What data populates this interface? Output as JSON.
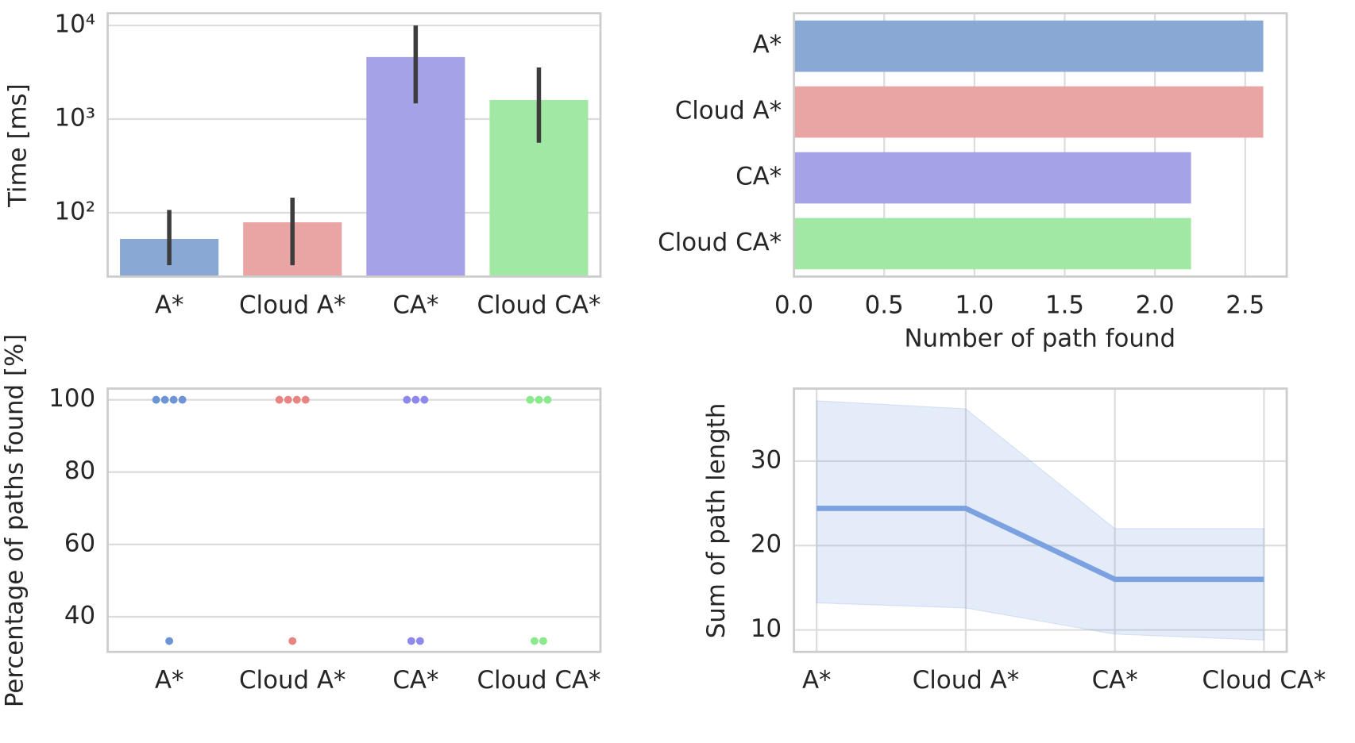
{
  "chart_data": [
    {
      "type": "bar",
      "ylabel": "Time [ms]",
      "categories": [
        "A*",
        "Cloud A*",
        "CA*",
        "Cloud CA*"
      ],
      "values": [
        52.5,
        79,
        4600,
        1600
      ],
      "err_low": [
        27.5,
        27.5,
        1470,
        560
      ],
      "err_high": [
        107,
        145,
        10000,
        3560
      ],
      "colors": [
        "#89a9d4",
        "#e8a5a3",
        "#a5a2e8",
        "#a2e8a5"
      ],
      "log_y": true,
      "ylim": [
        20.8,
        13500
      ],
      "yticks": [
        {
          "value": 100,
          "label": "10²"
        },
        {
          "value": 1000,
          "label": "10³"
        },
        {
          "value": 10000,
          "label": "10⁴"
        }
      ],
      "grid": true
    },
    {
      "type": "barh",
      "xlabel": "Number of path found",
      "categories": [
        "A*",
        "Cloud A*",
        "CA*",
        "Cloud CA*"
      ],
      "values": [
        2.6,
        2.6,
        2.2,
        2.2
      ],
      "colors": [
        "#89a9d4",
        "#e8a5a3",
        "#a5a2e8",
        "#a2e8a5"
      ],
      "xlim": [
        0,
        2.73
      ],
      "xticks": [
        {
          "value": 0,
          "label": "0.0"
        },
        0.5,
        {
          "value": 1,
          "label": "1.0"
        },
        1.5,
        {
          "value": 2,
          "label": "2.0"
        },
        2.5
      ],
      "grid": true
    },
    {
      "type": "strip",
      "ylabel": "Percentage of paths found [%]",
      "categories": [
        "A*",
        "Cloud A*",
        "CA*",
        "Cloud CA*"
      ],
      "values": [
        [
          100,
          100,
          100,
          100,
          33.3
        ],
        [
          100,
          100,
          100,
          100,
          33.3
        ],
        [
          100,
          100,
          100,
          33.3,
          33.3
        ],
        [
          100,
          100,
          100,
          33.3,
          33.3
        ]
      ],
      "colors": [
        "#6d95d6",
        "#e88583",
        "#8d89ec",
        "#8ae88d"
      ],
      "ylim": [
        30.3,
        103.1
      ],
      "yticks": [
        40,
        60,
        80,
        100
      ],
      "grid": true
    },
    {
      "type": "line",
      "ylabel": "Sum of path length",
      "categories": [
        "A*",
        "Cloud A*",
        "CA*",
        "Cloud CA*"
      ],
      "values": [
        24.4,
        24.4,
        16.0,
        16.0
      ],
      "upper": [
        37.15,
        36.2,
        22.0,
        22.0
      ],
      "lower": [
        13.2,
        12.6,
        9.5,
        8.8
      ],
      "color": "#7ba1e0",
      "ylim": [
        7.4,
        38.6
      ],
      "yticks": [
        10,
        20,
        30
      ],
      "grid": true
    }
  ]
}
